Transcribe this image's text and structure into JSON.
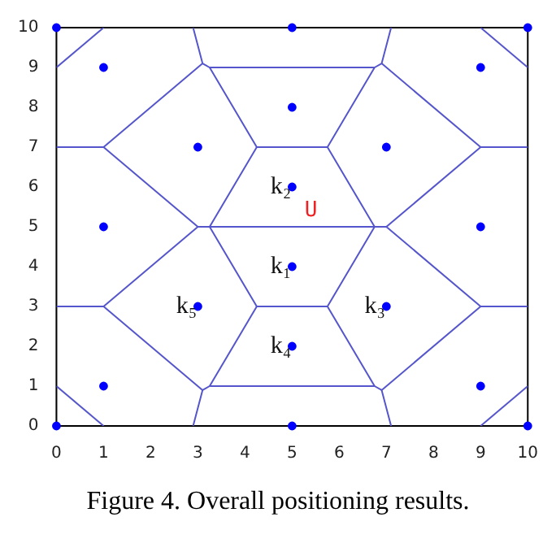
{
  "chart_data": {
    "type": "scatter",
    "xlim": [
      0,
      10
    ],
    "ylim": [
      0,
      10
    ],
    "xticks": [
      0,
      1,
      2,
      3,
      4,
      5,
      6,
      7,
      8,
      9,
      10
    ],
    "yticks": [
      0,
      1,
      2,
      3,
      4,
      5,
      6,
      7,
      8,
      9,
      10
    ],
    "grid": false,
    "legend": false,
    "series": [
      {
        "marker": "circle",
        "color": "#0000ff",
        "x": [
          0,
          0,
          5,
          5,
          10,
          10,
          1,
          1,
          1,
          3,
          3,
          5,
          5,
          5,
          5,
          7,
          7,
          9,
          9,
          9
        ],
        "values": [
          0,
          10,
          0,
          10,
          0,
          10,
          1,
          5,
          9,
          3,
          7,
          2,
          4,
          6,
          8,
          3,
          7,
          1,
          5,
          9
        ]
      },
      {
        "type": "line",
        "color": "#5555cc",
        "x": [
          0,
          1
        ],
        "values": [
          9,
          10
        ]
      },
      {
        "type": "line",
        "color": "#5555cc",
        "x": [
          9,
          10
        ],
        "values": [
          10,
          9
        ]
      },
      {
        "type": "line",
        "color": "#5555cc",
        "x": [
          2.9,
          3.1,
          3.25,
          6.75,
          6.9,
          7.1
        ],
        "values": [
          10,
          9.1,
          9,
          9,
          9.1,
          10
        ]
      },
      {
        "type": "line",
        "color": "#5555cc",
        "x": [
          0,
          1,
          3.1
        ],
        "values": [
          7,
          7,
          9.1
        ]
      },
      {
        "type": "line",
        "color": "#5555cc",
        "x": [
          10,
          9,
          6.9
        ],
        "values": [
          7,
          7,
          9.1
        ]
      },
      {
        "type": "line",
        "color": "#5555cc",
        "x": [
          3.25,
          4.25,
          5.75,
          6.75
        ],
        "values": [
          9,
          7,
          7,
          9
        ]
      },
      {
        "type": "line",
        "color": "#5555cc",
        "x": [
          4.25,
          3.25,
          4.25,
          5.75,
          6.75,
          5.75
        ],
        "values": [
          7,
          5,
          3,
          3,
          5,
          7
        ]
      },
      {
        "type": "line",
        "color": "#5555cc",
        "x": [
          1,
          3,
          1,
          0
        ],
        "values": [
          7,
          5,
          3,
          3
        ]
      },
      {
        "type": "line",
        "color": "#5555cc",
        "x": [
          9,
          7,
          9,
          10
        ],
        "values": [
          7,
          5,
          3,
          3
        ]
      },
      {
        "type": "line",
        "color": "#5555cc",
        "x": [
          3,
          7
        ],
        "values": [
          5,
          5
        ]
      },
      {
        "type": "line",
        "color": "#5555cc",
        "x": [
          3.1,
          3.25,
          6.75,
          6.9
        ],
        "values": [
          0.9,
          1,
          1,
          0.9
        ]
      },
      {
        "type": "line",
        "color": "#5555cc",
        "x": [
          4.25,
          3.25
        ],
        "values": [
          3,
          1
        ]
      },
      {
        "type": "line",
        "color": "#5555cc",
        "x": [
          5.75,
          6.75
        ],
        "values": [
          3,
          1
        ]
      },
      {
        "type": "line",
        "color": "#5555cc",
        "x": [
          1,
          3.1,
          2.9
        ],
        "values": [
          3,
          0.9,
          0
        ]
      },
      {
        "type": "line",
        "color": "#5555cc",
        "x": [
          9,
          6.9,
          7.1
        ],
        "values": [
          3,
          0.9,
          0
        ]
      },
      {
        "type": "line",
        "color": "#5555cc",
        "x": [
          0,
          1
        ],
        "values": [
          1,
          0
        ]
      },
      {
        "type": "line",
        "color": "#5555cc",
        "x": [
          9,
          10
        ],
        "values": [
          0,
          1
        ]
      }
    ],
    "annotations": [
      {
        "text": "k₂",
        "x": 5,
        "y": 6
      },
      {
        "text": "k₁",
        "x": 5,
        "y": 4
      },
      {
        "text": "k₅",
        "x": 3,
        "y": 3
      },
      {
        "text": "k₃",
        "x": 7,
        "y": 3
      },
      {
        "text": "k₄",
        "x": 5,
        "y": 2
      },
      "U",
      "Figure 4. Overall positioning results."
    ]
  }
}
